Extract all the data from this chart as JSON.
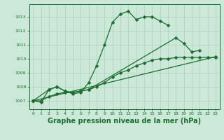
{
  "background_color": "#cce8d8",
  "plot_bg_color": "#cce8d8",
  "grid_color": "#aacfbe",
  "line_color": "#1a6e2e",
  "xlabel": "Graphe pression niveau de la mer (hPa)",
  "xlabel_fontsize": 7,
  "ylim": [
    1006.4,
    1013.9
  ],
  "xlim": [
    -0.5,
    23.5
  ],
  "yticks": [
    1007,
    1008,
    1009,
    1010,
    1011,
    1012,
    1013
  ],
  "xticks": [
    0,
    1,
    2,
    3,
    4,
    5,
    6,
    7,
    8,
    9,
    10,
    11,
    12,
    13,
    14,
    15,
    16,
    17,
    18,
    19,
    20,
    21,
    22,
    23
  ],
  "curve1_x": [
    0,
    1,
    2,
    3,
    4,
    5,
    6,
    7,
    8,
    9,
    10,
    11,
    12,
    13,
    14,
    15,
    16,
    17
  ],
  "curve1_y": [
    1007.0,
    1006.9,
    1007.8,
    1008.0,
    1007.7,
    1007.5,
    1007.6,
    1008.3,
    1009.5,
    1011.0,
    1012.6,
    1013.2,
    1013.4,
    1012.8,
    1013.0,
    1013.0,
    1012.7,
    1012.4
  ],
  "curve2_x": [
    0,
    2,
    3,
    4,
    5,
    6,
    7,
    18,
    19,
    20,
    21
  ],
  "curve2_y": [
    1007.0,
    1007.8,
    1008.0,
    1007.7,
    1007.6,
    1007.7,
    1007.8,
    1011.5,
    1011.1,
    1010.5,
    1010.6
  ],
  "curve3_x": [
    0,
    23
  ],
  "curve3_y": [
    1007.0,
    1010.15
  ],
  "curve4_x": [
    0,
    1,
    2,
    3,
    4,
    5,
    6,
    7,
    8,
    9,
    10,
    11,
    12,
    13,
    14,
    15,
    16,
    17,
    18,
    19,
    20,
    21,
    22,
    23
  ],
  "curve4_y": [
    1007.0,
    1007.0,
    1007.3,
    1007.5,
    1007.6,
    1007.6,
    1007.7,
    1007.8,
    1008.0,
    1008.3,
    1008.7,
    1009.0,
    1009.2,
    1009.5,
    1009.7,
    1009.9,
    1010.0,
    1010.0,
    1010.1,
    1010.1,
    1010.1,
    1010.1,
    1010.1,
    1010.1
  ]
}
